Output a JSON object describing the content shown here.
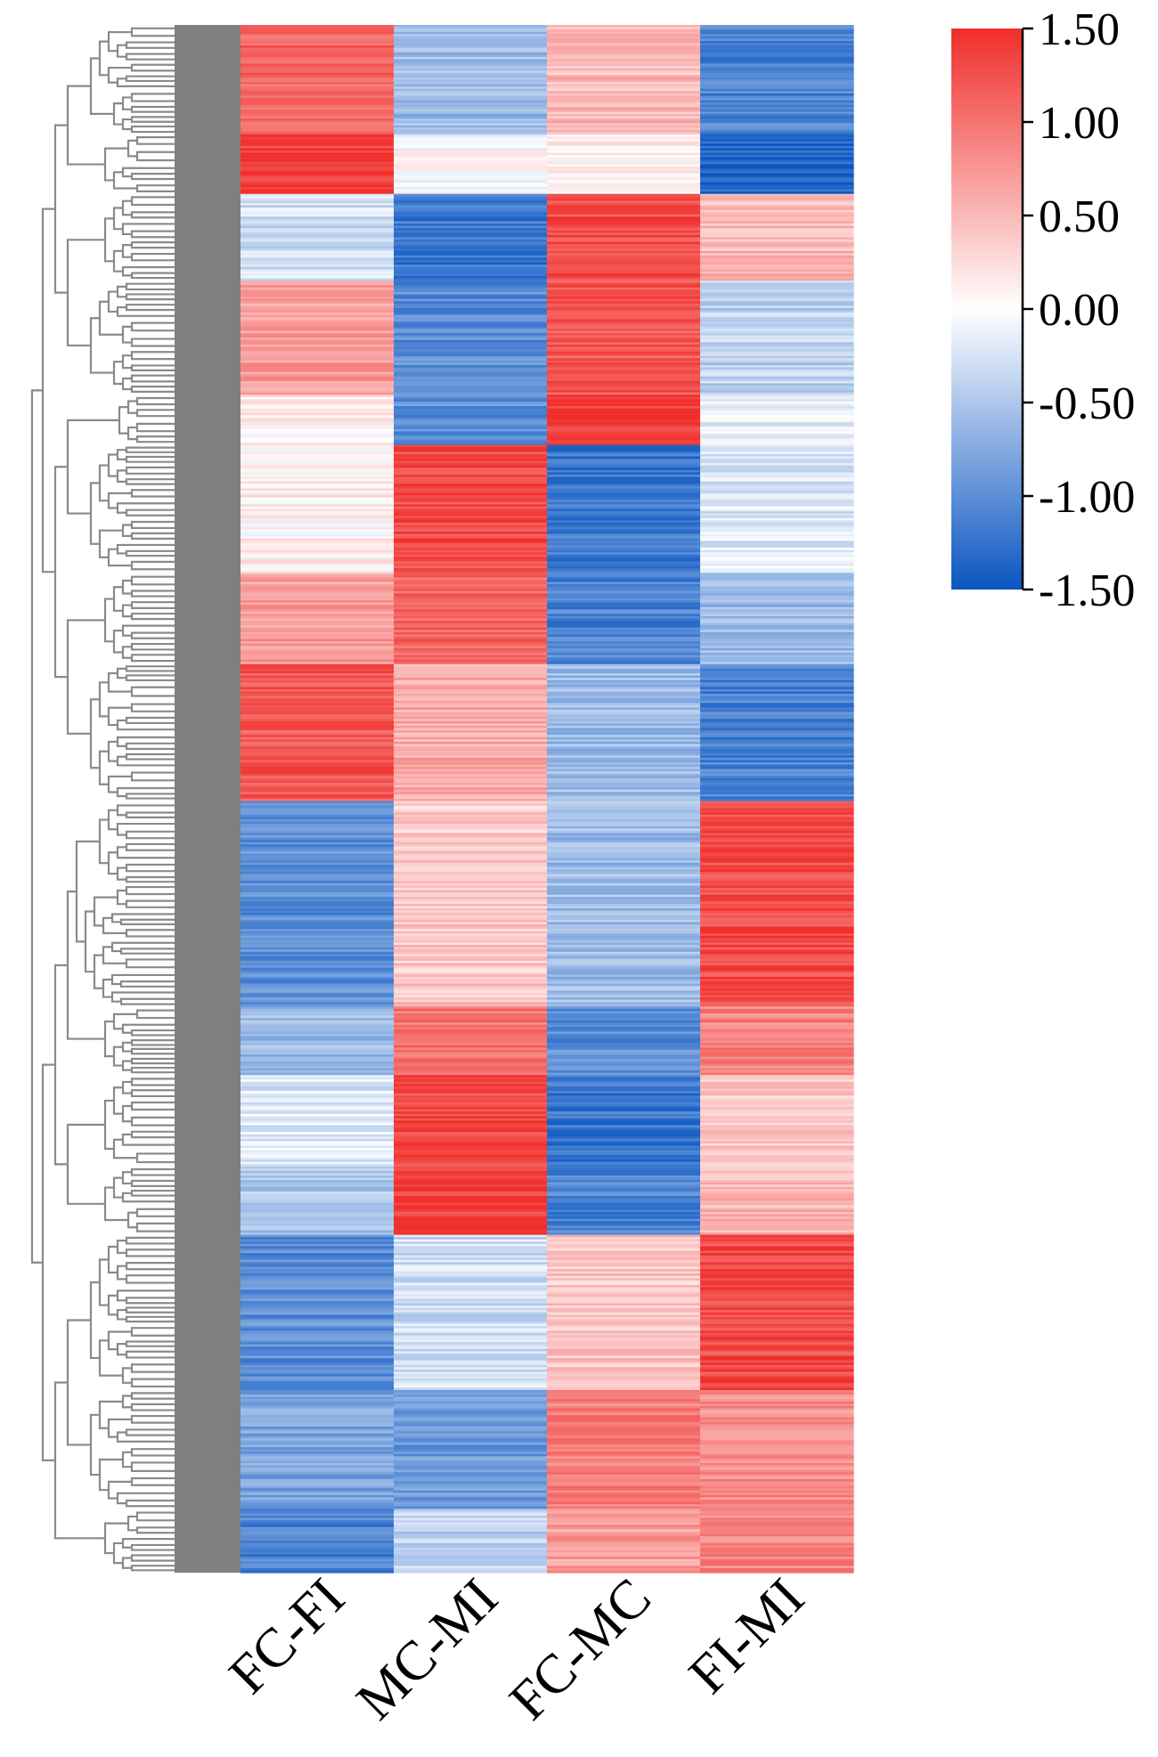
{
  "chart_data": {
    "type": "heatmap",
    "title": "",
    "columns": [
      "FC-FI",
      "MC-MI",
      "FC-MC",
      "FI-MI"
    ],
    "row_dendrogram": true,
    "colormap": {
      "low": "#0A56C2",
      "mid": "#FFFFFF",
      "high": "#F02E2A"
    },
    "colorbar": {
      "range": [
        -1.5,
        1.5
      ],
      "tick_labels": [
        "1.50",
        "1.00",
        "0.50",
        "0.00",
        "-0.50",
        "-1.00",
        "-1.50"
      ],
      "position": "top-right"
    },
    "clusters": [
      {
        "rows": 48,
        "values": [
          1.1,
          -0.6,
          0.5,
          -1.1
        ]
      },
      {
        "rows": 26,
        "values": [
          1.4,
          0.0,
          0.1,
          -1.4
        ]
      },
      {
        "rows": 38,
        "values": [
          -0.3,
          -1.2,
          1.3,
          0.5
        ]
      },
      {
        "rows": 50,
        "values": [
          0.7,
          -1.0,
          1.2,
          -0.4
        ]
      },
      {
        "rows": 22,
        "values": [
          0.1,
          -1.0,
          1.4,
          -0.1
        ]
      },
      {
        "rows": 56,
        "values": [
          0.1,
          1.3,
          -1.2,
          -0.2
        ]
      },
      {
        "rows": 40,
        "values": [
          0.7,
          1.1,
          -1.1,
          -0.6
        ]
      },
      {
        "rows": 60,
        "values": [
          1.2,
          0.6,
          -0.6,
          -1.1
        ]
      },
      {
        "rows": 90,
        "values": [
          -1.0,
          0.4,
          -0.6,
          1.3
        ]
      },
      {
        "rows": 30,
        "values": [
          -0.6,
          1.0,
          -1.0,
          0.9
        ]
      },
      {
        "rows": 40,
        "values": [
          -0.2,
          1.3,
          -1.2,
          0.4
        ]
      },
      {
        "rows": 30,
        "values": [
          -0.5,
          1.4,
          -1.1,
          0.5
        ]
      },
      {
        "rows": 68,
        "values": [
          -1.0,
          -0.3,
          0.4,
          1.3
        ]
      },
      {
        "rows": 52,
        "values": [
          -0.8,
          -0.9,
          0.9,
          0.8
        ]
      },
      {
        "rows": 28,
        "values": [
          -1.1,
          -0.4,
          0.7,
          0.9
        ]
      }
    ]
  }
}
